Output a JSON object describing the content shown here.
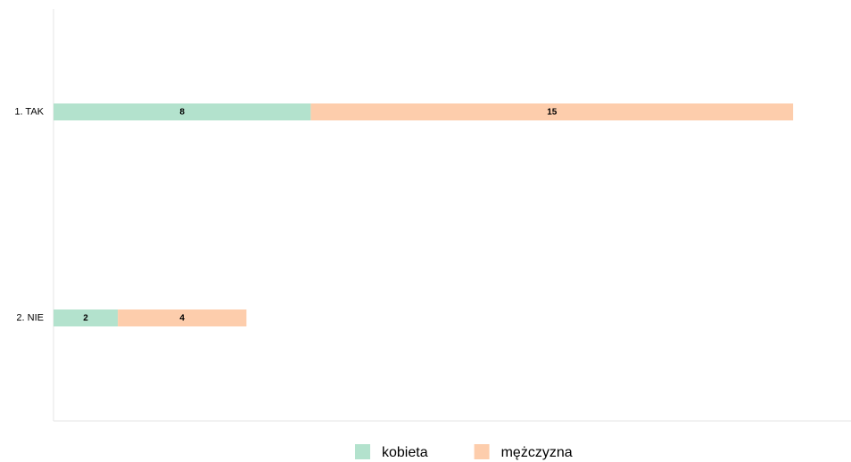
{
  "chart_data": {
    "type": "stacked_barh",
    "categories": [
      "1. TAK",
      "2. NIE"
    ],
    "series": [
      {
        "name": "kobieta",
        "color": "#b3e2cd",
        "values": [
          8,
          2
        ]
      },
      {
        "name": "mężczyzna",
        "color": "#fdcdac",
        "values": [
          15,
          4
        ]
      }
    ],
    "xlim": [
      0,
      24.8
    ],
    "legend": "bottom"
  }
}
